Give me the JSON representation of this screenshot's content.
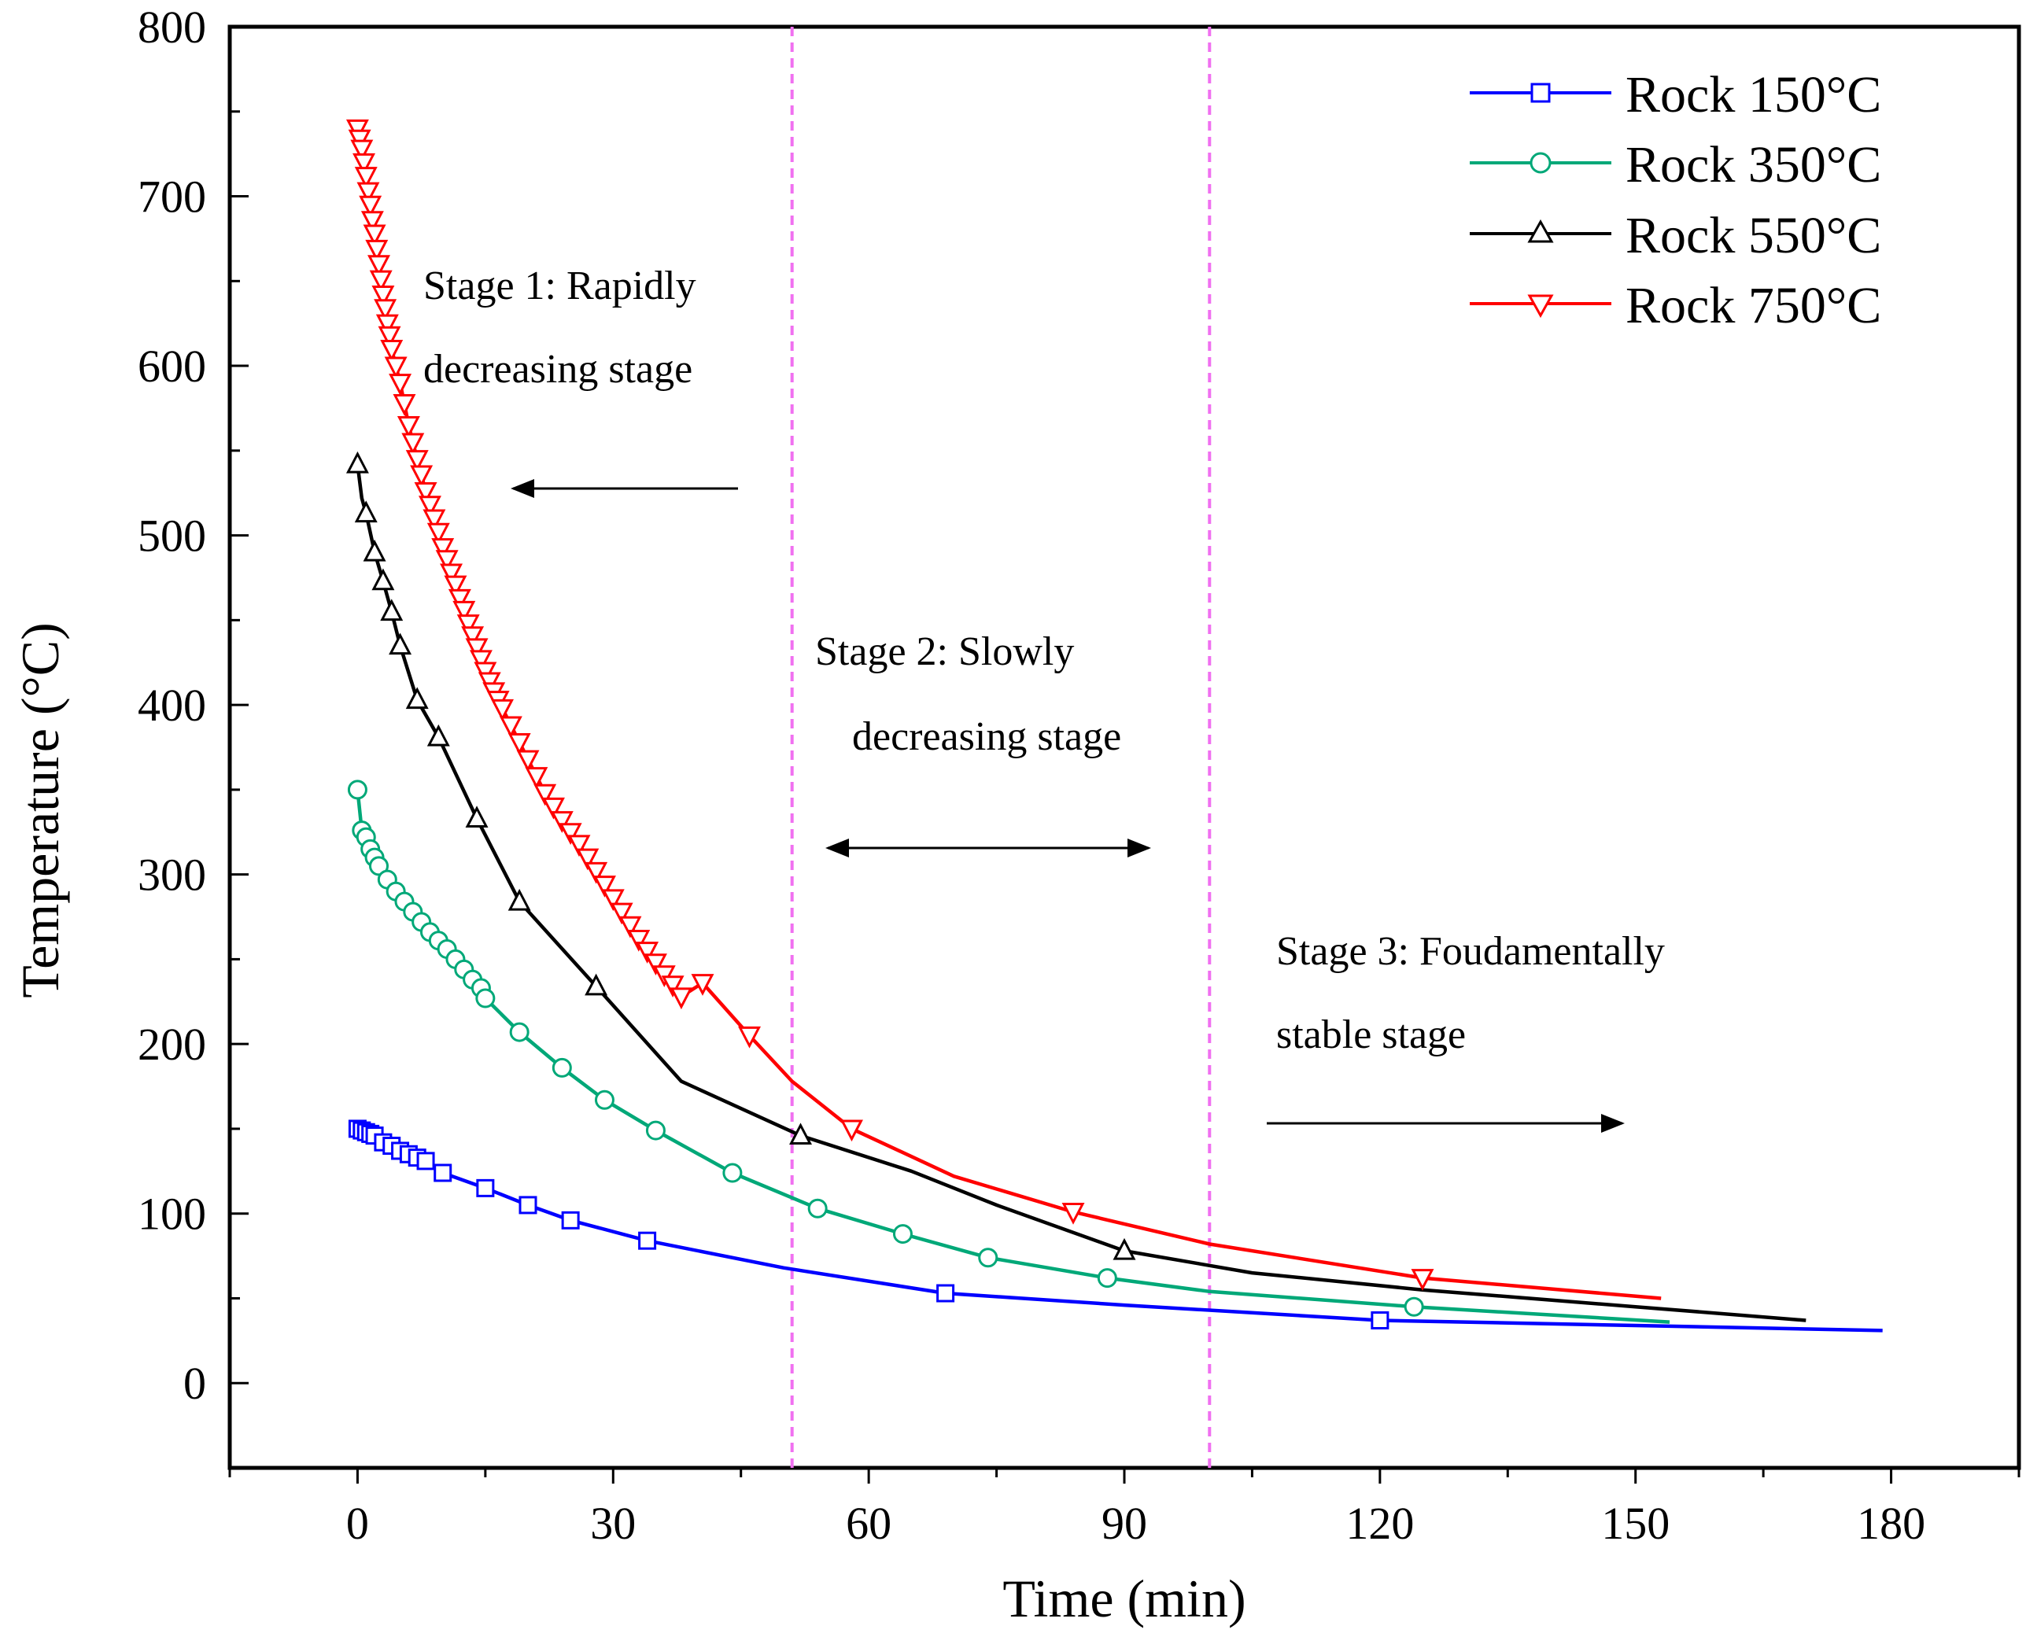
{
  "chart_data": {
    "type": "line",
    "title": "",
    "xlabel": "Time (min)",
    "ylabel": "Temperature (°C)",
    "xlim": [
      -15,
      195
    ],
    "ylim": [
      -50,
      800
    ],
    "xticks": [
      "0",
      "30",
      "60",
      "90",
      "120",
      "150",
      "180"
    ],
    "yticks": [
      "0",
      "100",
      "200",
      "300",
      "400",
      "500",
      "600",
      "700",
      "800"
    ],
    "grid": false,
    "legend_position": "top-right",
    "series": [
      {
        "name": "Rock 150°C",
        "color": "#0000ff",
        "marker": "square",
        "x": [
          0,
          0.5,
          1,
          1.5,
          2,
          2.5,
          3,
          4,
          5,
          6,
          7,
          8,
          10,
          15,
          20,
          25,
          34,
          50,
          69,
          90,
          120,
          150,
          179
        ],
        "y": [
          150,
          149,
          148,
          147,
          146,
          144,
          142,
          140,
          137,
          135,
          133,
          131,
          124,
          115,
          105,
          96,
          84,
          68,
          53,
          46,
          37,
          34,
          31
        ],
        "markers_x": [
          0,
          0.5,
          1,
          1.5,
          2,
          3,
          4,
          5,
          6,
          7,
          8,
          10,
          15,
          20,
          25,
          34,
          69,
          120
        ],
        "markers_y": [
          150,
          149,
          148,
          147,
          146,
          142,
          140,
          137,
          135,
          133,
          131,
          124,
          115,
          105,
          96,
          84,
          53,
          37
        ]
      },
      {
        "name": "Rock 350°C",
        "color": "#00a878",
        "marker": "circle",
        "x": [
          0,
          0.5,
          1,
          1.5,
          2,
          2.5,
          3.5,
          4.5,
          5.5,
          6.5,
          7.5,
          8.5,
          9.5,
          10.5,
          11.5,
          12.5,
          13.5,
          14.5,
          15,
          19,
          24,
          29,
          35,
          44,
          54,
          64,
          74,
          88,
          100,
          124,
          154
        ],
        "y": [
          350,
          326,
          322,
          315,
          310,
          305,
          297,
          290,
          284,
          278,
          272,
          266,
          261,
          256,
          250,
          244,
          238,
          233,
          227,
          207,
          186,
          167,
          149,
          124,
          103,
          88,
          74,
          62,
          54,
          45,
          36
        ],
        "markers_x": [
          0,
          0.5,
          1,
          1.5,
          2,
          2.5,
          3.5,
          4.5,
          5.5,
          6.5,
          7.5,
          8.5,
          9.5,
          10.5,
          11.5,
          12.5,
          13.5,
          14.5,
          15,
          19,
          24,
          29,
          35,
          44,
          54,
          64,
          74,
          88,
          124
        ],
        "markers_y": [
          350,
          326,
          322,
          315,
          310,
          305,
          297,
          290,
          284,
          278,
          272,
          266,
          261,
          256,
          250,
          244,
          238,
          233,
          227,
          207,
          186,
          167,
          149,
          124,
          103,
          88,
          74,
          62,
          45
        ]
      },
      {
        "name": "Rock 550°C",
        "color": "#000000",
        "marker": "triangle-up",
        "x": [
          0,
          0.5,
          1,
          2,
          3,
          4,
          5,
          7,
          9.5,
          14,
          19,
          28,
          38,
          52,
          65,
          75,
          90,
          105,
          125,
          150,
          170
        ],
        "y": [
          542,
          522,
          513,
          490,
          473,
          455,
          435,
          403,
          381,
          333,
          284,
          234,
          178,
          146,
          125,
          105,
          78,
          65,
          55,
          45,
          37
        ],
        "markers_x": [
          0,
          1,
          2,
          3,
          4,
          5,
          7,
          9.5,
          14,
          19,
          28,
          52,
          90
        ],
        "markers_y": [
          542,
          513,
          490,
          473,
          455,
          435,
          403,
          381,
          333,
          284,
          234,
          146,
          78
        ]
      },
      {
        "name": "Rock 750°C",
        "color": "#ff0000",
        "marker": "triangle-down",
        "x": [
          0,
          0.5,
          1,
          1.5,
          2,
          2.5,
          3,
          3.5,
          4,
          5,
          6,
          7,
          8,
          9,
          10,
          11,
          12,
          13,
          14,
          15,
          16,
          17,
          18,
          19,
          20,
          21,
          22,
          23,
          24,
          25,
          26,
          27,
          28,
          29,
          30,
          31,
          32,
          33,
          34,
          35,
          36,
          37,
          38,
          40.5,
          46,
          51,
          58,
          70,
          84,
          100,
          125,
          153
        ],
        "y": [
          740,
          728,
          712,
          695,
          678,
          660,
          642,
          625,
          610,
          590,
          565,
          545,
          526,
          510,
          493,
          478,
          463,
          448,
          434,
          420,
          408,
          398,
          388,
          378,
          368,
          358,
          348,
          340,
          332,
          325,
          318,
          310,
          302,
          294,
          286,
          278,
          270,
          262,
          255,
          248,
          241,
          235,
          228,
          236,
          205,
          178,
          150,
          122,
          101,
          82,
          62,
          50
        ],
        "markers_x": [
          0,
          0.25,
          0.5,
          0.75,
          1,
          1.25,
          1.5,
          1.75,
          2,
          2.25,
          2.5,
          2.75,
          3,
          3.25,
          3.5,
          3.75,
          4,
          4.5,
          5,
          5.5,
          6,
          6.5,
          7,
          7.5,
          8,
          8.5,
          9,
          9.5,
          10,
          10.5,
          11,
          11.5,
          12,
          12.5,
          13,
          13.5,
          14,
          14.5,
          15,
          15.5,
          16,
          16.5,
          17,
          18,
          19,
          20,
          21,
          22,
          23,
          24,
          25,
          26,
          27,
          28,
          29,
          30,
          31,
          32,
          33,
          34,
          35,
          36,
          37,
          38,
          40.5,
          46,
          58,
          84,
          125
        ],
        "markers_y": [
          740,
          734,
          728,
          720,
          712,
          703,
          695,
          686,
          678,
          669,
          660,
          651,
          642,
          634,
          625,
          618,
          610,
          600,
          590,
          578,
          565,
          555,
          545,
          536,
          526,
          518,
          510,
          502,
          493,
          486,
          478,
          471,
          463,
          456,
          448,
          441,
          434,
          427,
          420,
          414,
          408,
          403,
          398,
          388,
          378,
          368,
          358,
          348,
          340,
          332,
          325,
          318,
          310,
          302,
          294,
          286,
          278,
          270,
          262,
          255,
          248,
          241,
          235,
          228,
          236,
          205,
          150,
          101,
          62
        ]
      }
    ],
    "stage_boundaries_x": [
      51,
      100
    ],
    "annotations": [
      {
        "lines": [
          "Stage 1: Rapidly",
          "decreasing stage"
        ],
        "arrow": "left"
      },
      {
        "lines": [
          "Stage 2: Slowly",
          "decreasing stage"
        ],
        "arrow": "both"
      },
      {
        "lines": [
          "Stage 3: Foudamentally",
          "stable stage"
        ],
        "arrow": "right"
      }
    ]
  }
}
